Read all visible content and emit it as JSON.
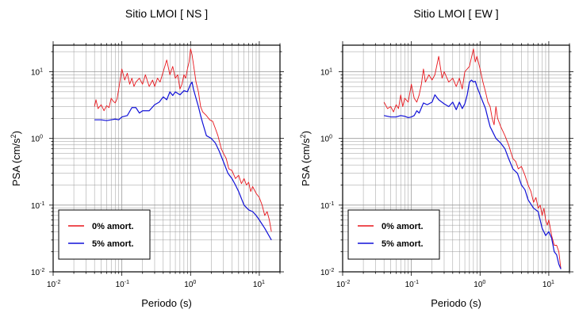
{
  "colors": {
    "series_0pct": "#e8161c",
    "series_5pct": "#1010d8",
    "grid": "#9a9a9a",
    "frame": "#000000"
  },
  "chart_data": [
    {
      "type": "line",
      "title": "Sitio LMOI [ NS ]",
      "xlabel": "Periodo (s)",
      "ylabel_base": "PSA (cm/s",
      "ylabel_sup": "2",
      "ylabel_end": ")",
      "xscale": "log",
      "yscale": "log",
      "xlim": [
        0.01,
        20
      ],
      "ylim": [
        0.01,
        25
      ],
      "grid": true,
      "legend_placement": "bottom-left",
      "x_ticks": [
        {
          "base": "10",
          "exp": "-2"
        },
        {
          "base": "10",
          "exp": "-1"
        },
        {
          "base": "10",
          "exp": "0"
        },
        {
          "base": "10",
          "exp": "1"
        }
      ],
      "y_ticks": [
        {
          "base": "10",
          "exp": "-2"
        },
        {
          "base": "10",
          "exp": "-1"
        },
        {
          "base": "10",
          "exp": "0"
        },
        {
          "base": "10",
          "exp": "1"
        }
      ],
      "series": [
        {
          "name": "0% amort.",
          "color": "#e8161c",
          "points": [
            [
              0.04,
              3.0
            ],
            [
              0.042,
              3.8
            ],
            [
              0.045,
              2.8
            ],
            [
              0.05,
              3.2
            ],
            [
              0.055,
              2.6
            ],
            [
              0.06,
              3.1
            ],
            [
              0.065,
              2.9
            ],
            [
              0.07,
              4.0
            ],
            [
              0.075,
              3.6
            ],
            [
              0.08,
              3.4
            ],
            [
              0.085,
              3.9
            ],
            [
              0.09,
              5.5
            ],
            [
              0.1,
              11.0
            ],
            [
              0.11,
              7.5
            ],
            [
              0.12,
              9.5
            ],
            [
              0.13,
              6.5
            ],
            [
              0.14,
              8.0
            ],
            [
              0.15,
              6.0
            ],
            [
              0.16,
              7.0
            ],
            [
              0.18,
              8.0
            ],
            [
              0.2,
              6.5
            ],
            [
              0.22,
              9.0
            ],
            [
              0.25,
              6.0
            ],
            [
              0.28,
              7.5
            ],
            [
              0.3,
              6.0
            ],
            [
              0.33,
              8.0
            ],
            [
              0.36,
              7.0
            ],
            [
              0.4,
              10.0
            ],
            [
              0.45,
              15.0
            ],
            [
              0.5,
              9.0
            ],
            [
              0.55,
              12.0
            ],
            [
              0.6,
              8.0
            ],
            [
              0.65,
              9.0
            ],
            [
              0.7,
              5.5
            ],
            [
              0.75,
              6.5
            ],
            [
              0.8,
              9.0
            ],
            [
              0.85,
              8.0
            ],
            [
              0.9,
              11.0
            ],
            [
              0.95,
              14.0
            ],
            [
              1.0,
              22.0
            ],
            [
              1.05,
              18.0
            ],
            [
              1.1,
              13.0
            ],
            [
              1.2,
              7.0
            ],
            [
              1.3,
              5.0
            ],
            [
              1.4,
              3.0
            ],
            [
              1.5,
              2.5
            ],
            [
              1.7,
              2.2
            ],
            [
              1.9,
              1.9
            ],
            [
              2.1,
              1.8
            ],
            [
              2.3,
              1.4
            ],
            [
              2.5,
              1.1
            ],
            [
              2.8,
              0.7
            ],
            [
              3.0,
              0.6
            ],
            [
              3.3,
              0.5
            ],
            [
              3.6,
              0.35
            ],
            [
              4.0,
              0.33
            ],
            [
              4.5,
              0.25
            ],
            [
              5.0,
              0.28
            ],
            [
              5.5,
              0.21
            ],
            [
              6.0,
              0.25
            ],
            [
              6.5,
              0.2
            ],
            [
              7.0,
              0.22
            ],
            [
              7.5,
              0.16
            ],
            [
              8.0,
              0.19
            ],
            [
              9.0,
              0.15
            ],
            [
              10.0,
              0.13
            ],
            [
              11.0,
              0.1
            ],
            [
              12.0,
              0.07
            ],
            [
              13.0,
              0.08
            ],
            [
              14.0,
              0.06
            ],
            [
              15.0,
              0.04
            ]
          ]
        },
        {
          "name": "5% amort.",
          "color": "#1010d8",
          "points": [
            [
              0.04,
              1.9
            ],
            [
              0.05,
              1.9
            ],
            [
              0.06,
              1.85
            ],
            [
              0.07,
              1.9
            ],
            [
              0.08,
              1.95
            ],
            [
              0.09,
              1.9
            ],
            [
              0.1,
              2.1
            ],
            [
              0.12,
              2.2
            ],
            [
              0.14,
              2.9
            ],
            [
              0.16,
              2.9
            ],
            [
              0.18,
              2.4
            ],
            [
              0.2,
              2.6
            ],
            [
              0.25,
              2.6
            ],
            [
              0.3,
              3.2
            ],
            [
              0.35,
              3.5
            ],
            [
              0.4,
              4.2
            ],
            [
              0.45,
              3.8
            ],
            [
              0.5,
              5.0
            ],
            [
              0.55,
              4.4
            ],
            [
              0.6,
              5.0
            ],
            [
              0.7,
              4.5
            ],
            [
              0.8,
              5.2
            ],
            [
              0.9,
              5.0
            ],
            [
              1.0,
              6.5
            ],
            [
              1.05,
              7.0
            ],
            [
              1.1,
              5.5
            ],
            [
              1.2,
              4.0
            ],
            [
              1.3,
              3.0
            ],
            [
              1.4,
              2.2
            ],
            [
              1.5,
              1.7
            ],
            [
              1.7,
              1.1
            ],
            [
              2.0,
              1.0
            ],
            [
              2.3,
              0.85
            ],
            [
              2.6,
              0.65
            ],
            [
              3.0,
              0.45
            ],
            [
              3.5,
              0.3
            ],
            [
              4.0,
              0.25
            ],
            [
              4.5,
              0.2
            ],
            [
              5.0,
              0.16
            ],
            [
              6.0,
              0.1
            ],
            [
              7.0,
              0.085
            ],
            [
              8.0,
              0.08
            ],
            [
              9.0,
              0.07
            ],
            [
              10.0,
              0.06
            ],
            [
              12.0,
              0.045
            ],
            [
              15.0,
              0.03
            ]
          ]
        }
      ]
    },
    {
      "type": "line",
      "title": "Sitio LMOI [ EW ]",
      "xlabel": "Periodo (s)",
      "ylabel_base": "PSA (cm/s",
      "ylabel_sup": "2",
      "ylabel_end": ")",
      "xscale": "log",
      "yscale": "log",
      "xlim": [
        0.01,
        20
      ],
      "ylim": [
        0.01,
        25
      ],
      "grid": true,
      "legend_placement": "bottom-left",
      "x_ticks": [
        {
          "base": "10",
          "exp": "-2"
        },
        {
          "base": "10",
          "exp": "-1"
        },
        {
          "base": "10",
          "exp": "0"
        },
        {
          "base": "10",
          "exp": "1"
        }
      ],
      "y_ticks": [
        {
          "base": "10",
          "exp": "-2"
        },
        {
          "base": "10",
          "exp": "-1"
        },
        {
          "base": "10",
          "exp": "0"
        },
        {
          "base": "10",
          "exp": "1"
        }
      ],
      "series": [
        {
          "name": "0% amort.",
          "color": "#e8161c",
          "points": [
            [
              0.04,
              3.5
            ],
            [
              0.045,
              2.8
            ],
            [
              0.05,
              3.0
            ],
            [
              0.055,
              2.5
            ],
            [
              0.06,
              3.2
            ],
            [
              0.065,
              2.8
            ],
            [
              0.07,
              4.5
            ],
            [
              0.075,
              3.0
            ],
            [
              0.08,
              4.0
            ],
            [
              0.09,
              3.5
            ],
            [
              0.1,
              6.5
            ],
            [
              0.11,
              4.0
            ],
            [
              0.12,
              3.5
            ],
            [
              0.13,
              4.5
            ],
            [
              0.14,
              6.5
            ],
            [
              0.15,
              11.0
            ],
            [
              0.16,
              7.0
            ],
            [
              0.18,
              9.0
            ],
            [
              0.2,
              7.5
            ],
            [
              0.22,
              9.0
            ],
            [
              0.25,
              17.0
            ],
            [
              0.28,
              8.0
            ],
            [
              0.3,
              10.0
            ],
            [
              0.35,
              7.0
            ],
            [
              0.4,
              8.0
            ],
            [
              0.45,
              6.0
            ],
            [
              0.5,
              8.0
            ],
            [
              0.55,
              5.5
            ],
            [
              0.6,
              10.0
            ],
            [
              0.7,
              12.0
            ],
            [
              0.8,
              22.0
            ],
            [
              0.85,
              14.0
            ],
            [
              0.9,
              17.0
            ],
            [
              1.0,
              11.0
            ],
            [
              1.1,
              7.0
            ],
            [
              1.2,
              5.0
            ],
            [
              1.3,
              3.5
            ],
            [
              1.4,
              3.0
            ],
            [
              1.5,
              2.0
            ],
            [
              1.6,
              1.6
            ],
            [
              1.7,
              3.0
            ],
            [
              1.8,
              2.0
            ],
            [
              2.0,
              1.5
            ],
            [
              2.3,
              1.1
            ],
            [
              2.6,
              0.8
            ],
            [
              3.0,
              0.5
            ],
            [
              3.3,
              0.45
            ],
            [
              3.6,
              0.35
            ],
            [
              4.0,
              0.38
            ],
            [
              4.5,
              0.28
            ],
            [
              5.0,
              0.2
            ],
            [
              5.5,
              0.16
            ],
            [
              6.0,
              0.11
            ],
            [
              6.5,
              0.13
            ],
            [
              7.0,
              0.09
            ],
            [
              7.5,
              0.1
            ],
            [
              8.0,
              0.07
            ],
            [
              8.5,
              0.09
            ],
            [
              9.0,
              0.06
            ],
            [
              9.5,
              0.05
            ],
            [
              10.0,
              0.06
            ],
            [
              11.0,
              0.035
            ],
            [
              12.0,
              0.025
            ],
            [
              13.0,
              0.025
            ],
            [
              14.0,
              0.02
            ],
            [
              15.0,
              0.011
            ]
          ]
        },
        {
          "name": "5% amort.",
          "color": "#1010d8",
          "points": [
            [
              0.04,
              2.2
            ],
            [
              0.05,
              2.1
            ],
            [
              0.06,
              2.1
            ],
            [
              0.07,
              2.2
            ],
            [
              0.08,
              2.15
            ],
            [
              0.09,
              2.05
            ],
            [
              0.1,
              2.1
            ],
            [
              0.11,
              2.2
            ],
            [
              0.12,
              2.6
            ],
            [
              0.13,
              2.4
            ],
            [
              0.15,
              3.4
            ],
            [
              0.17,
              3.2
            ],
            [
              0.2,
              3.5
            ],
            [
              0.22,
              4.5
            ],
            [
              0.25,
              3.8
            ],
            [
              0.3,
              3.3
            ],
            [
              0.35,
              3.0
            ],
            [
              0.4,
              3.5
            ],
            [
              0.45,
              2.7
            ],
            [
              0.5,
              3.5
            ],
            [
              0.55,
              2.8
            ],
            [
              0.6,
              3.3
            ],
            [
              0.65,
              4.5
            ],
            [
              0.7,
              7.0
            ],
            [
              0.75,
              7.5
            ],
            [
              0.8,
              7.0
            ],
            [
              0.85,
              7.2
            ],
            [
              0.9,
              6.0
            ],
            [
              1.0,
              4.5
            ],
            [
              1.1,
              3.5
            ],
            [
              1.2,
              2.8
            ],
            [
              1.3,
              2.0
            ],
            [
              1.4,
              1.5
            ],
            [
              1.5,
              1.3
            ],
            [
              1.7,
              1.0
            ],
            [
              2.0,
              0.85
            ],
            [
              2.3,
              0.7
            ],
            [
              2.6,
              0.5
            ],
            [
              3.0,
              0.35
            ],
            [
              3.5,
              0.3
            ],
            [
              4.0,
              0.2
            ],
            [
              4.5,
              0.17
            ],
            [
              5.0,
              0.12
            ],
            [
              6.0,
              0.09
            ],
            [
              7.0,
              0.08
            ],
            [
              8.0,
              0.045
            ],
            [
              9.0,
              0.035
            ],
            [
              10.0,
              0.04
            ],
            [
              11.0,
              0.032
            ],
            [
              12.0,
              0.02
            ],
            [
              13.0,
              0.018
            ],
            [
              14.0,
              0.013
            ],
            [
              15.0,
              0.011
            ]
          ]
        }
      ]
    }
  ]
}
